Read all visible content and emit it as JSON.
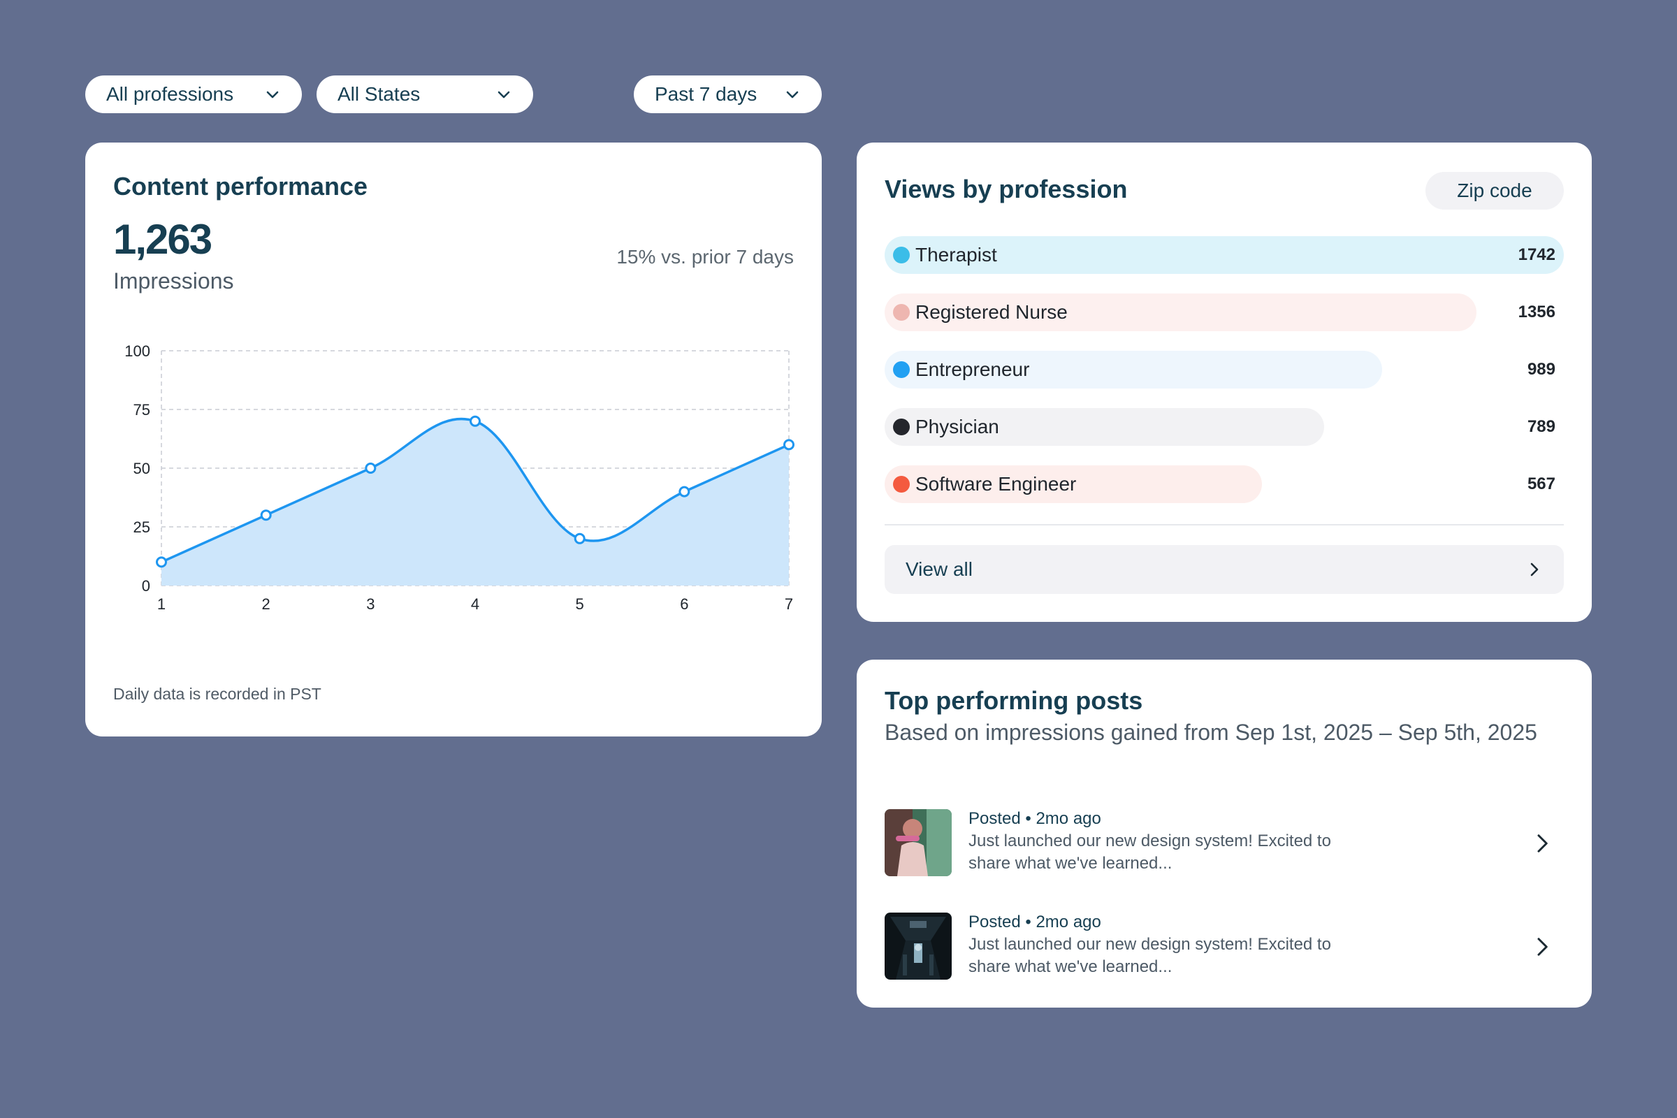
{
  "filters": {
    "profession": "All professions",
    "state": "All States",
    "period": "Past 7 days"
  },
  "performance": {
    "title": "Content performance",
    "value": "1,263",
    "metric": "Impressions",
    "comparison": "15% vs. prior 7 days",
    "footnote": "Daily data is recorded in PST"
  },
  "chart_data": {
    "type": "area",
    "x": [
      1,
      2,
      3,
      4,
      5,
      6,
      7
    ],
    "values": [
      10,
      30,
      50,
      70,
      20,
      40,
      60
    ],
    "ylim": [
      0,
      100
    ],
    "yticks": [
      0,
      25,
      50,
      75,
      100
    ],
    "xticks": [
      1,
      2,
      3,
      4,
      5,
      6,
      7
    ],
    "grid": true,
    "line_color": "#1e96f0",
    "fill_color": "#cde6fb"
  },
  "professions": {
    "title": "Views by profession",
    "zip_label": "Zip code",
    "items": [
      {
        "label": "Therapist",
        "count": 1742,
        "dot": "#3bbde8",
        "bar": "#dcf3fa"
      },
      {
        "label": "Registered Nurse",
        "count": 1356,
        "dot": "#eeb6b0",
        "bar": "#fdf0ef"
      },
      {
        "label": "Entrepreneur",
        "count": 989,
        "dot": "#22a0f2",
        "bar": "#eef6fd"
      },
      {
        "label": "Physician",
        "count": 789,
        "dot": "#24262c",
        "bar": "#f2f2f4"
      },
      {
        "label": "Software Engineer",
        "count": 567,
        "dot": "#f45a3f",
        "bar": "#fdeeec"
      }
    ],
    "view_all": "View all"
  },
  "posts": {
    "title": "Top performing posts",
    "subtitle": "Based on impressions gained from Sep 1st, 2025 – Sep 5th, 2025",
    "items": [
      {
        "meta": "Posted • 2mo ago",
        "text": "Just launched our new design system! Excited to share what we've learned..."
      },
      {
        "meta": "Posted • 2mo ago",
        "text": "Just launched our new design system! Excited to share what we've learned..."
      }
    ]
  }
}
